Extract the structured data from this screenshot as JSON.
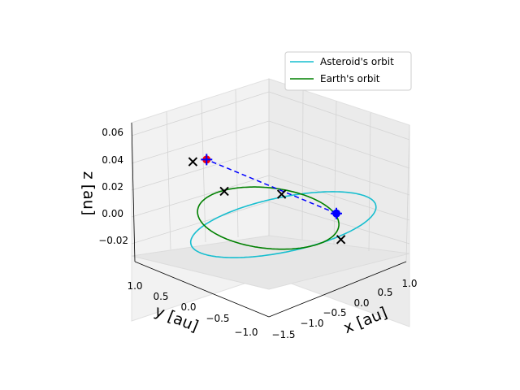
{
  "chart_data": {
    "type": "3d-line",
    "title": "",
    "xlabel": "x [au]",
    "ylabel": "y [au]",
    "zlabel": "z [au]",
    "xticks": [
      "−1.5",
      "−1.0",
      "−0.5",
      "0.0",
      "0.5",
      "1.0"
    ],
    "yticks": [
      "1.0",
      "0.5",
      "0.0",
      "−0.5",
      "−1.0"
    ],
    "zticks": [
      "0.06",
      "0.04",
      "0.02",
      "0.00",
      "−0.02"
    ],
    "xlim": [
      -1.5,
      1.2
    ],
    "ylim": [
      -1.2,
      1.2
    ],
    "zlim": [
      -0.035,
      0.065
    ],
    "grid": true,
    "legend_position": "top-right",
    "series": [
      {
        "name": "Asteroid's orbit",
        "color": "#17becf",
        "orbit": {
          "a": 1.4,
          "e": 0.38,
          "i_deg": 2.6,
          "node_deg": 150,
          "peri_deg": 45
        }
      },
      {
        "name": "Earth's orbit",
        "color": "#008000",
        "orbit": {
          "a": 1.0,
          "e": 0.0167,
          "i_deg": 0.0,
          "node_deg": 0,
          "peri_deg": 0
        }
      }
    ],
    "markers": [
      {
        "kind": "earth-position",
        "x": 0.85,
        "y": -0.55,
        "z": 0.0,
        "color": "#0000ff"
      },
      {
        "kind": "asteroid-position",
        "x": -0.25,
        "y": 0.92,
        "z": 0.031,
        "color": "#ff0000"
      },
      {
        "kind": "plus",
        "x": 0.85,
        "y": -0.55,
        "z": 0.0,
        "color": "#0000ff"
      },
      {
        "kind": "plus",
        "x": -0.25,
        "y": 0.92,
        "z": 0.031,
        "color": "#0000ff"
      },
      {
        "kind": "cross",
        "x": -1.05,
        "y": 0.55,
        "z": 0.048,
        "color": "#000000"
      },
      {
        "kind": "cross",
        "x": 0.75,
        "y": 0.35,
        "z": 0.0,
        "color": "#000000"
      },
      {
        "kind": "cross",
        "x": 0.2,
        "y": 0.95,
        "z": 0.0,
        "color": "#000000"
      },
      {
        "kind": "cross",
        "x": 0.5,
        "y": -0.9,
        "z": -0.008,
        "color": "#000000"
      }
    ],
    "connector": {
      "color": "#0000ff",
      "style": "dashed"
    }
  }
}
